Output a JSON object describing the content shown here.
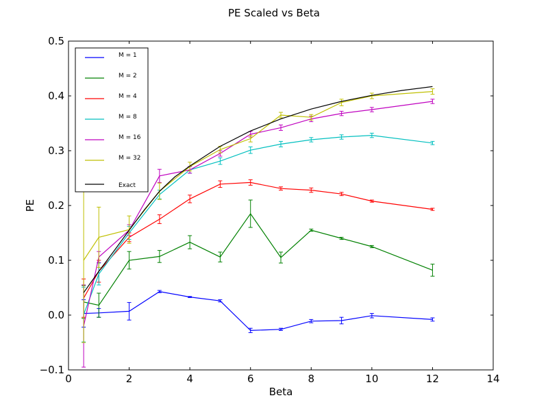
{
  "chart_data": {
    "type": "line",
    "title": "PE Scaled vs Beta",
    "xlabel": "Beta",
    "ylabel": "PE",
    "xlim": [
      0,
      14
    ],
    "ylim": [
      -0.1,
      0.5
    ],
    "xticks": [
      0,
      2,
      4,
      6,
      8,
      10,
      12,
      14
    ],
    "yticks": [
      -0.1,
      0.0,
      0.1,
      0.2,
      0.3,
      0.4,
      0.5
    ],
    "xtick_labels": [
      "0",
      "2",
      "4",
      "6",
      "8",
      "10",
      "12",
      "14"
    ],
    "ytick_labels": [
      "−0.1",
      "0.0",
      "0.1",
      "0.2",
      "0.3",
      "0.4",
      "0.5"
    ],
    "grid": false,
    "legend_position": "top-left",
    "series": [
      {
        "name": "M = 1",
        "color": "#0000ff",
        "x": [
          0.5,
          1,
          2,
          3,
          4,
          5,
          6,
          7,
          8,
          9,
          10,
          12
        ],
        "y": [
          0.003,
          0.004,
          0.007,
          0.043,
          0.033,
          0.026,
          -0.028,
          -0.026,
          -0.011,
          -0.01,
          -0.001,
          -0.008
        ],
        "err": [
          0.025,
          0.008,
          0.016,
          0.002,
          0.001,
          0.002,
          0.004,
          0.002,
          0.003,
          0.006,
          0.004,
          0.003
        ]
      },
      {
        "name": "M = 2",
        "color": "#008000",
        "x": [
          0.5,
          1,
          2,
          3,
          4,
          5,
          6,
          7,
          8,
          9,
          10,
          12
        ],
        "y": [
          0.024,
          0.018,
          0.1,
          0.107,
          0.133,
          0.106,
          0.185,
          0.105,
          0.155,
          0.14,
          0.125,
          0.082
        ],
        "err": [
          0.03,
          0.022,
          0.016,
          0.011,
          0.012,
          0.009,
          0.025,
          0.01,
          0.002,
          0.002,
          0.002,
          0.011
        ]
      },
      {
        "name": "M = 4",
        "color": "#ff0000",
        "x": [
          0.5,
          1,
          2,
          3,
          4,
          5,
          6,
          7,
          8,
          9,
          10,
          12
        ],
        "y": [
          0.031,
          0.08,
          0.142,
          0.175,
          0.212,
          0.239,
          0.242,
          0.231,
          0.228,
          0.221,
          0.208,
          0.193
        ],
        "err": [
          0.035,
          0.02,
          0.008,
          0.008,
          0.007,
          0.006,
          0.005,
          0.003,
          0.004,
          0.003,
          0.002,
          0.002
        ]
      },
      {
        "name": "M = 8",
        "color": "#00bfbf",
        "x": [
          0.5,
          1,
          2,
          3,
          4,
          5,
          6,
          7,
          8,
          9,
          10,
          12
        ],
        "y": [
          0.001,
          0.075,
          0.15,
          0.22,
          0.265,
          0.281,
          0.301,
          0.312,
          0.32,
          0.325,
          0.328,
          0.314
        ],
        "err": [
          0.05,
          0.02,
          0.012,
          0.008,
          0.006,
          0.006,
          0.006,
          0.005,
          0.004,
          0.004,
          0.004,
          0.003
        ]
      },
      {
        "name": "M = 16",
        "color": "#bf00bf",
        "x": [
          0.5,
          1,
          2,
          3,
          4,
          5,
          6,
          7,
          8,
          9,
          10,
          12
        ],
        "y": [
          -0.02,
          0.106,
          0.155,
          0.254,
          0.265,
          0.295,
          0.33,
          0.342,
          0.358,
          0.368,
          0.375,
          0.39
        ],
        "err": [
          0.075,
          0.01,
          0.01,
          0.012,
          0.006,
          0.005,
          0.005,
          0.005,
          0.005,
          0.004,
          0.004,
          0.004
        ]
      },
      {
        "name": "M = 32",
        "color": "#bfbf00",
        "x": [
          0.5,
          1,
          2,
          3,
          4,
          5,
          6,
          7,
          8,
          9,
          10,
          12
        ],
        "y": [
          0.1,
          0.142,
          0.156,
          0.226,
          0.271,
          0.302,
          0.322,
          0.365,
          0.361,
          0.388,
          0.4,
          0.408
        ],
        "err": [
          0.15,
          0.055,
          0.025,
          0.015,
          0.008,
          0.006,
          0.006,
          0.005,
          0.005,
          0.006,
          0.005,
          0.005
        ]
      },
      {
        "name": "Exact",
        "color": "#000000",
        "x": [
          0.5,
          1,
          1.5,
          2,
          2.5,
          3,
          3.5,
          4,
          5,
          6,
          7,
          8,
          9,
          10,
          11,
          12
        ],
        "y": [
          0.041,
          0.08,
          0.117,
          0.155,
          0.192,
          0.226,
          0.252,
          0.272,
          0.308,
          0.336,
          0.358,
          0.376,
          0.39,
          0.401,
          0.41,
          0.417
        ]
      }
    ]
  }
}
